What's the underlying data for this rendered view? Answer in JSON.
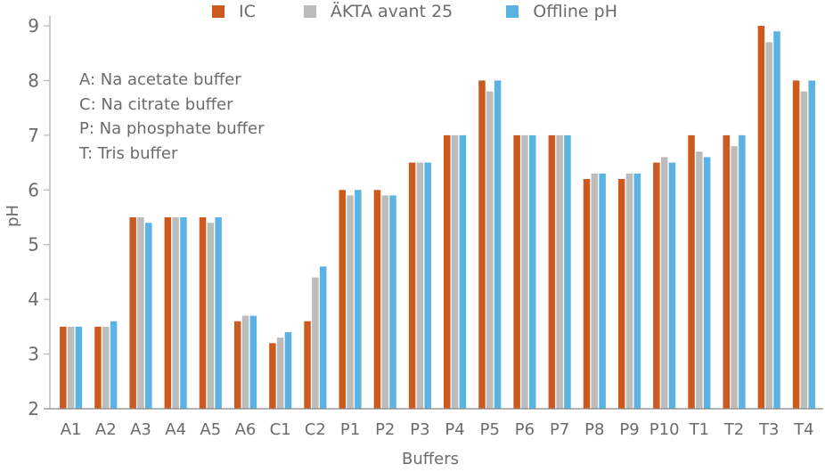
{
  "chart_data": {
    "type": "bar",
    "title": "",
    "xlabel": "Buffers",
    "ylabel": "pH",
    "ylim": [
      2,
      9
    ],
    "yticks": [
      2,
      3,
      4,
      5,
      6,
      7,
      8,
      9
    ],
    "grid": false,
    "legend_position": "top",
    "categories": [
      "A1",
      "A2",
      "A3",
      "A4",
      "A5",
      "A6",
      "C1",
      "C2",
      "P1",
      "P2",
      "P3",
      "P4",
      "P5",
      "P6",
      "P7",
      "P8",
      "P9",
      "P10",
      "T1",
      "T2",
      "T3",
      "T4"
    ],
    "series": [
      {
        "name": "IC",
        "color": "#cc5a1f",
        "values": [
          3.5,
          3.5,
          5.5,
          5.5,
          5.5,
          3.6,
          3.2,
          3.6,
          6.0,
          6.0,
          6.5,
          7.0,
          8.0,
          7.0,
          7.0,
          6.2,
          6.2,
          6.5,
          7.0,
          7.0,
          9.0,
          8.0
        ]
      },
      {
        "name": "ÄKTA avant 25",
        "color": "#bcbcbc",
        "values": [
          3.5,
          3.5,
          5.5,
          5.5,
          5.4,
          3.7,
          3.3,
          4.4,
          5.9,
          5.9,
          6.5,
          7.0,
          7.8,
          7.0,
          7.0,
          6.3,
          6.3,
          6.6,
          6.7,
          6.8,
          8.7,
          7.8
        ]
      },
      {
        "name": "Offline pH",
        "color": "#5ab3e2",
        "values": [
          3.5,
          3.6,
          5.4,
          5.5,
          5.5,
          3.7,
          3.4,
          4.6,
          6.0,
          5.9,
          6.5,
          7.0,
          8.0,
          7.0,
          7.0,
          6.3,
          6.3,
          6.5,
          6.6,
          7.0,
          8.9,
          8.0
        ]
      }
    ],
    "annotations": [
      "A: Na acetate buffer",
      "C: Na citrate buffer",
      "P: Na phosphate buffer",
      "T: Tris buffer"
    ]
  },
  "legend": {
    "items": [
      {
        "label": "IC",
        "color": "#cc5a1f"
      },
      {
        "label": "ÄKTA avant 25",
        "color": "#bcbcbc"
      },
      {
        "label": "Offline pH",
        "color": "#5ab3e2"
      }
    ]
  },
  "notes": {
    "line0": "A: Na acetate buffer",
    "line1": "C: Na citrate buffer",
    "line2": "P: Na phosphate buffer",
    "line3": "T: Tris buffer"
  },
  "axes": {
    "xlabel": "Buffers",
    "ylabel": "pH"
  }
}
